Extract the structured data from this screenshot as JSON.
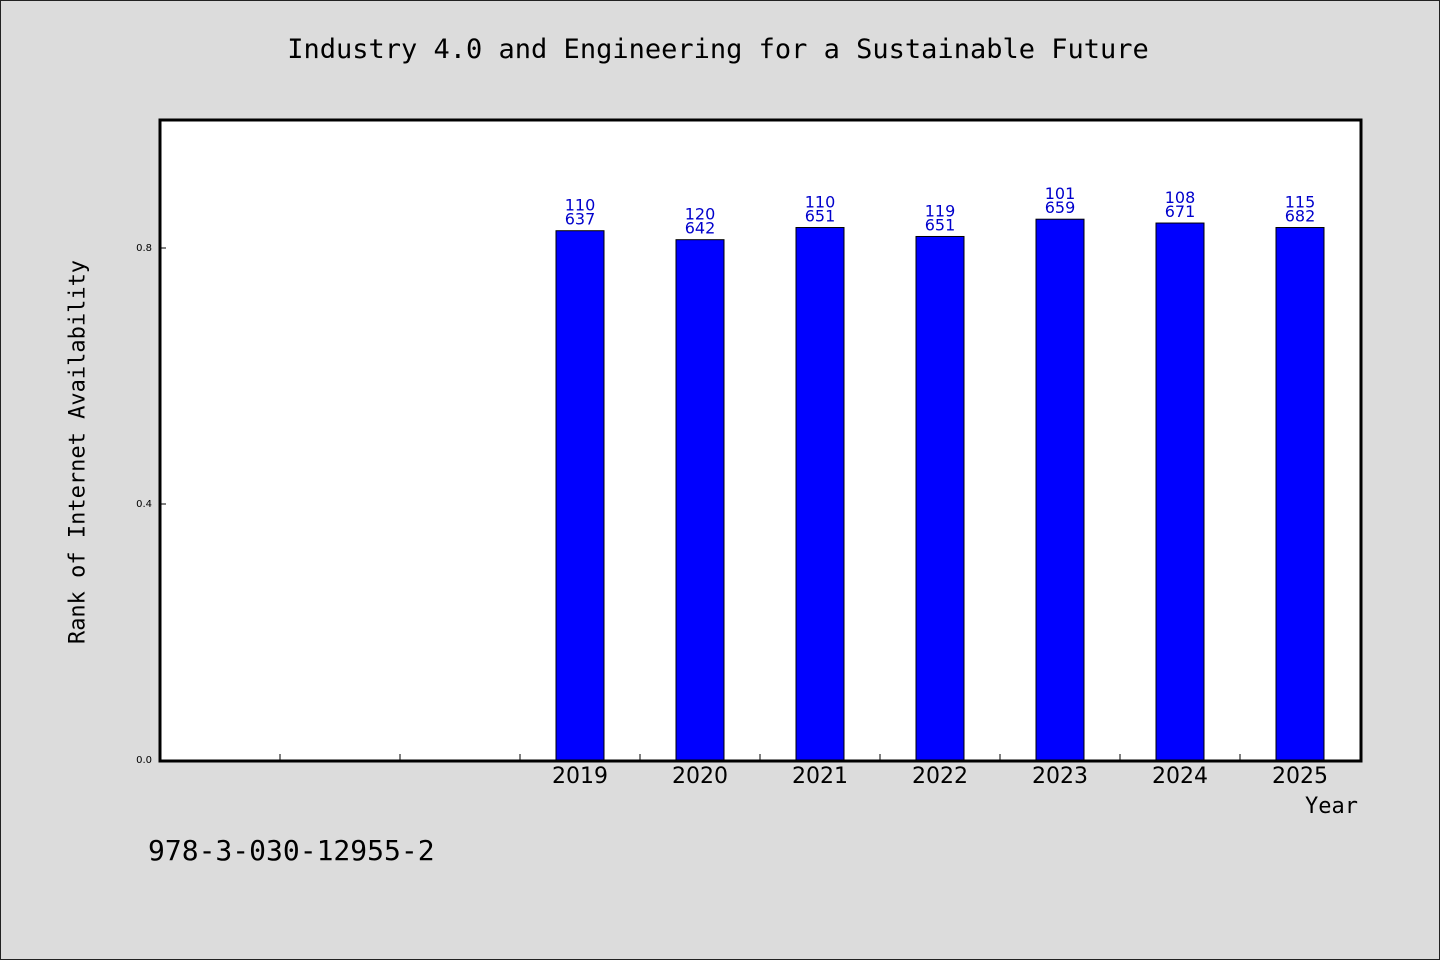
{
  "chart_data": {
    "type": "bar",
    "title": "Industry 4.0 and Engineering for a Sustainable Future",
    "xlabel": "Year",
    "ylabel": "Rank of Internet Availability",
    "categories": [
      "2019",
      "2020",
      "2021",
      "2022",
      "2023",
      "2024",
      "2025"
    ],
    "values": [
      0.827,
      0.813,
      0.832,
      0.818,
      0.845,
      0.839,
      0.832
    ],
    "data_labels": [
      [
        "110",
        "637"
      ],
      [
        "120",
        "642"
      ],
      [
        "110",
        "651"
      ],
      [
        "119",
        "651"
      ],
      [
        "101",
        "659"
      ],
      [
        "108",
        "671"
      ],
      [
        "115",
        "682"
      ]
    ],
    "ylim": [
      0,
      1.0
    ],
    "yticks": [
      "0.0",
      "0.4",
      "0.8"
    ],
    "ytick_values": [
      0.0,
      0.4,
      0.8
    ],
    "grid": false,
    "legend": "none",
    "bar_color": "#0000ff",
    "label_color": "#0000cc"
  },
  "footer": {
    "isbn": "978-3-030-12955-2"
  }
}
